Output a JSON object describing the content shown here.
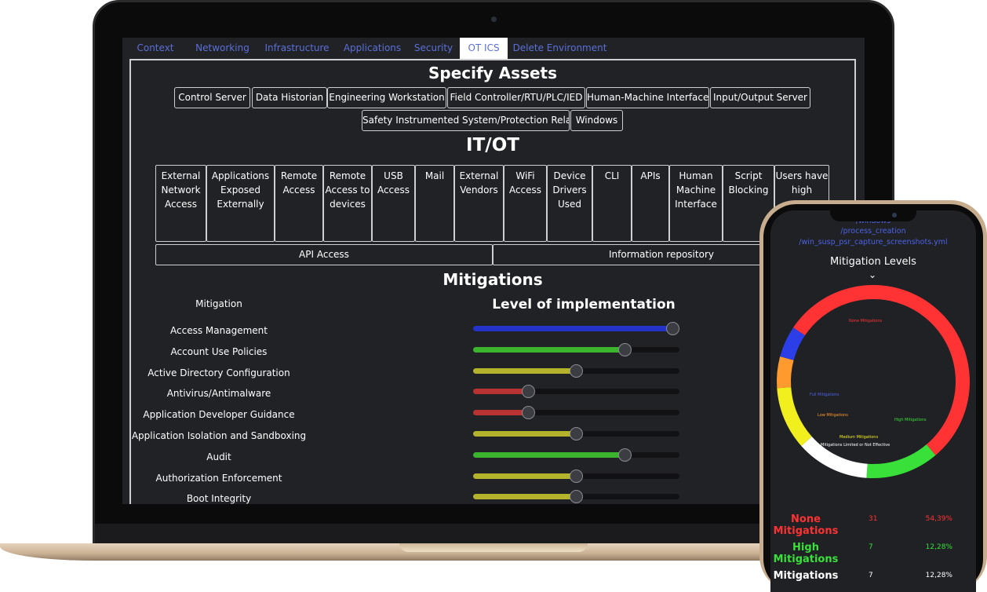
{
  "tabs": [
    {
      "label": "Context",
      "w": 84,
      "active": false
    },
    {
      "label": "Networking",
      "w": 87,
      "active": false
    },
    {
      "label": "Infrastructure",
      "w": 103,
      "active": false
    },
    {
      "label": "Applications",
      "w": 89,
      "active": false
    },
    {
      "label": "Security",
      "w": 67,
      "active": false
    },
    {
      "label": "OT ICS",
      "w": 61,
      "active": true
    },
    {
      "label": "Delete Environment",
      "w": 133,
      "active": false
    }
  ],
  "assets": {
    "title": "Specify Assets",
    "row1": [
      "Control Server",
      "Data Historian",
      "Engineering Workstation",
      "Field Controller/RTU/PLC/IED",
      "Human-Machine Interface",
      "Input/Output Server"
    ],
    "row2": [
      "Safety Instrumented System/Protection Relay",
      "Windows"
    ]
  },
  "itot": {
    "title": "IT/OT",
    "cells": [
      "External Network Access",
      "Applications Exposed Externally",
      "Remote Access",
      "Remote Access to devices",
      "USB Access",
      "Mail",
      "External Vendors",
      "WiFi Access",
      "Device Drivers Used",
      "CLI",
      "APIs",
      "Human Machine Interface",
      "Script Blocking",
      "Users have high"
    ],
    "wide": [
      "API Access",
      "Information repository"
    ]
  },
  "mitigations": {
    "title": "Mitigations",
    "col_mitigation": "Mitigation",
    "col_level": "Level of implementation",
    "items": [
      {
        "name": "Access Management",
        "level": 1.0,
        "color": "#2433c9"
      },
      {
        "name": "Account Use Policies",
        "level": 0.75,
        "color": "#3bb52e"
      },
      {
        "name": "Active Directory Configuration",
        "level": 0.5,
        "color": "#b5b32c"
      },
      {
        "name": "Antivirus/Antimalware",
        "level": 0.25,
        "color": "#b83232"
      },
      {
        "name": "Application Developer Guidance",
        "level": 0.25,
        "color": "#b83232"
      },
      {
        "name": "Application Isolation and Sandboxing",
        "level": 0.5,
        "color": "#b5b32c"
      },
      {
        "name": "Audit",
        "level": 0.75,
        "color": "#3bb52e"
      },
      {
        "name": "Authorization Enforcement",
        "level": 0.5,
        "color": "#b5b32c"
      },
      {
        "name": "Boot Integrity",
        "level": 0.5,
        "color": "#b5b32c"
      }
    ]
  },
  "phone": {
    "paths": [
      "/windows",
      "/process_creation",
      "/win_susp_psr_capture_screenshots.yml"
    ],
    "chart_title": "Mitigation Levels",
    "chevron": "⌄",
    "donut_labels": [
      {
        "text": "None Mitigations",
        "color": "#ff3333"
      },
      {
        "text": "Full Mitigations",
        "color": "#4b63e6"
      },
      {
        "text": "Low Mitigations",
        "color": "#ff9a2e"
      },
      {
        "text": "High Mitigations",
        "color": "#39e03a"
      },
      {
        "text": "Medium Mitigations",
        "color": "#f2ef1f"
      },
      {
        "text": "Mitigations Limited or Not Effective",
        "color": "#ffffff"
      }
    ],
    "stats": [
      {
        "name": "None Mitigations",
        "count": "31",
        "pct": "54,39%",
        "color": "#ff3333"
      },
      {
        "name": "High Mitigations",
        "count": "7",
        "pct": "12,28%",
        "color": "#39e03a"
      },
      {
        "name": "Mitigations",
        "count": "7",
        "pct": "12,28%",
        "color": "#ffffff"
      }
    ]
  },
  "chart_data": {
    "type": "pie",
    "title": "Mitigation Levels",
    "categories": [
      "None Mitigations",
      "High Mitigations",
      "Mitigations Limited or Not Effective",
      "Medium Mitigations",
      "Low Mitigations",
      "Full Mitigations"
    ],
    "values": [
      31,
      7,
      7,
      6,
      3,
      3
    ],
    "percentages": [
      54.39,
      12.28,
      12.28,
      10.53,
      5.26,
      5.26
    ],
    "colors": [
      "#ff3333",
      "#39e03a",
      "#ffffff",
      "#f2ef1f",
      "#ff9a2e",
      "#2b3ee8"
    ],
    "donut": true
  }
}
